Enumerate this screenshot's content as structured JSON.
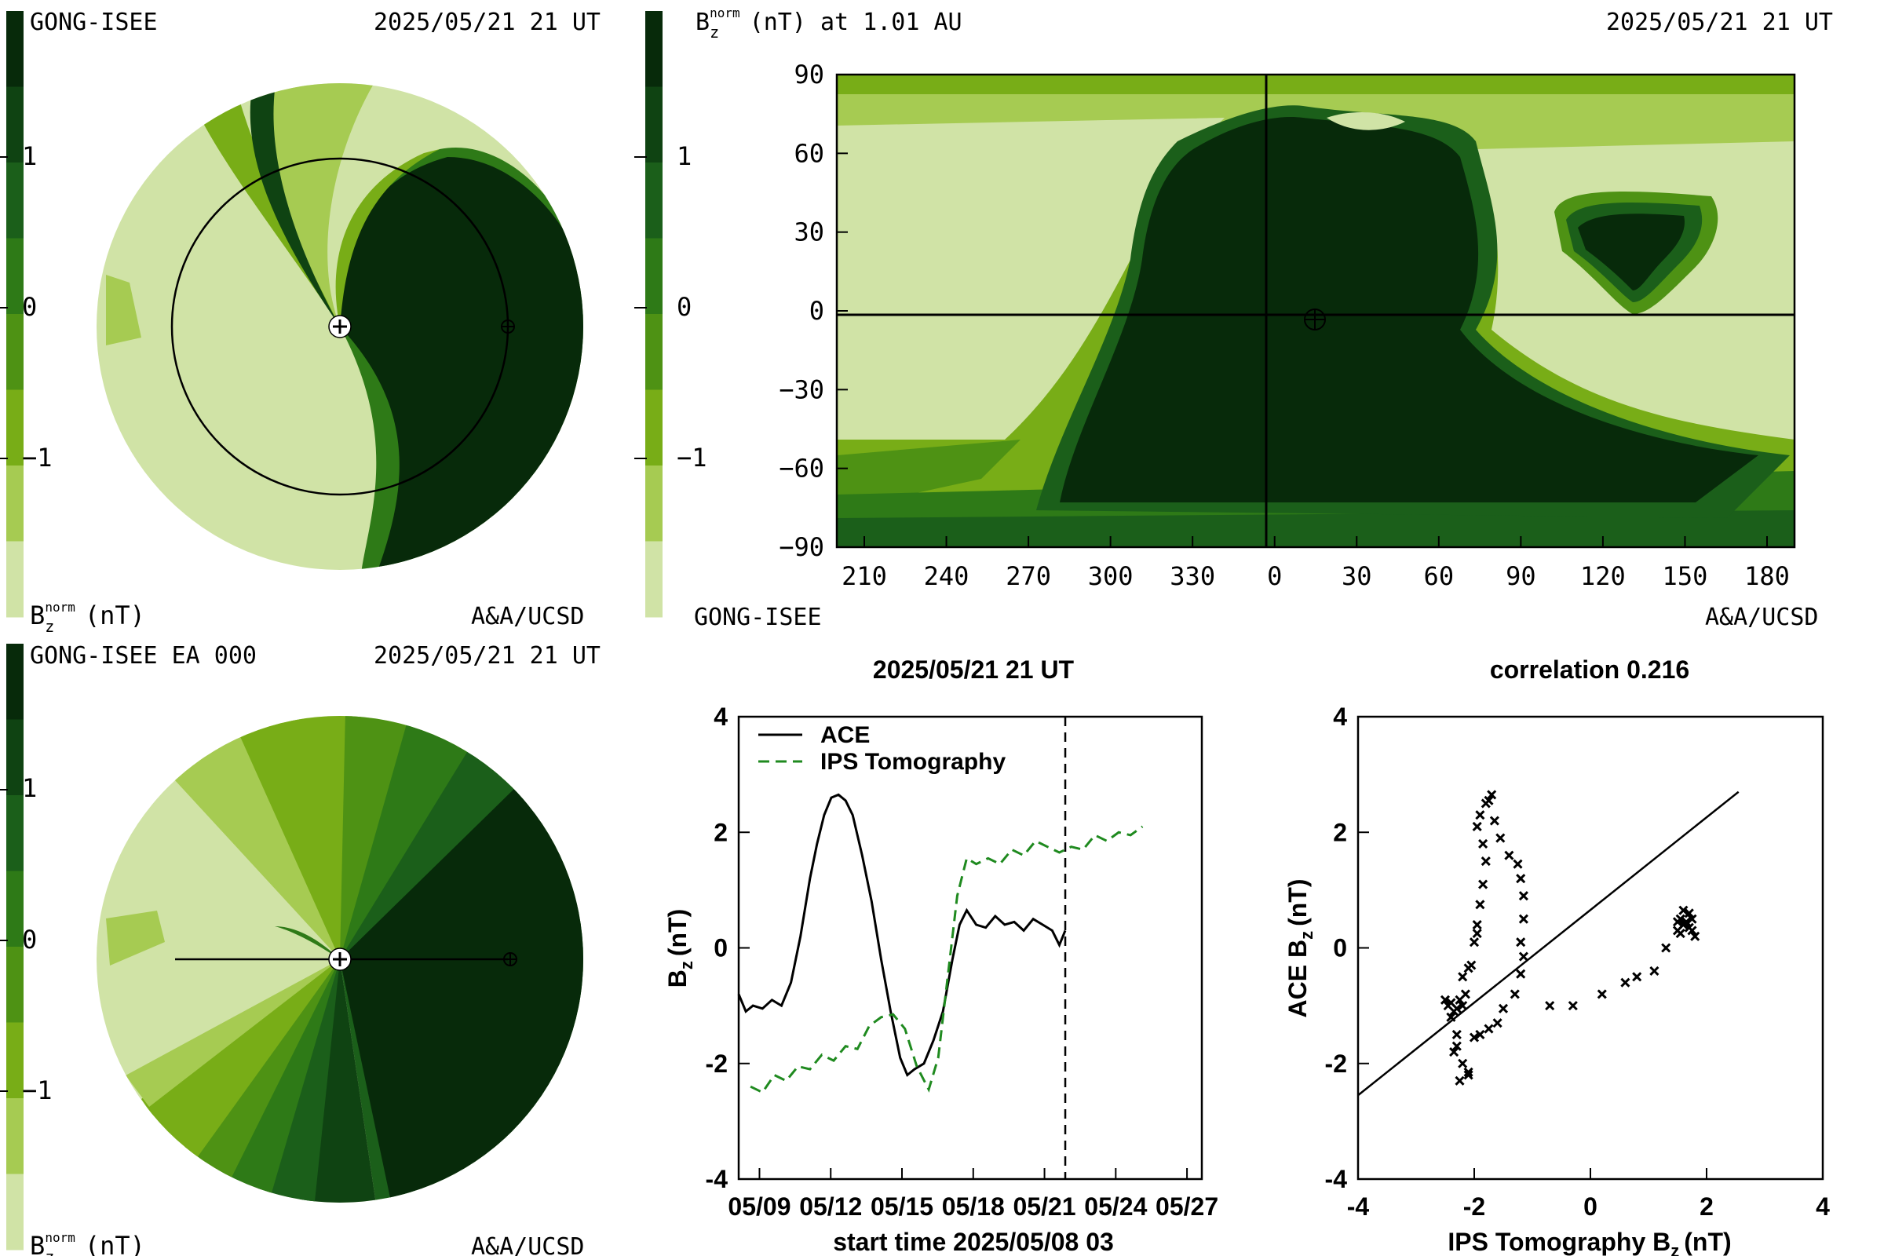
{
  "colorscale": [
    "#d0e3a6",
    "#a6cb52",
    "#78ad17",
    "#4e9214",
    "#2e7a17",
    "#1b5f1a",
    "#0f4312",
    "#072a0a"
  ],
  "panels": {
    "top_left": {
      "source": "GONG-ISEE",
      "timestamp": "2025/05/21 21 UT",
      "colorbar_ticks": [
        "1",
        "0",
        "−1"
      ],
      "colorbar_label_main": "B",
      "colorbar_label_sub": "z",
      "colorbar_label_sup": "norm",
      "colorbar_label_unit": "(nT)",
      "credit": "A&A/UCSD"
    },
    "top_right": {
      "title_main": "B",
      "title_sub": "z",
      "title_sup": "norm",
      "title_rest": "(nT) at 1.01 AU",
      "timestamp": "2025/05/21 21 UT",
      "colorbar_ticks": [
        "1",
        "0",
        "−1"
      ],
      "source": "GONG-ISEE",
      "credit": "A&A/UCSD"
    },
    "bottom_left": {
      "source": "GONG-ISEE EA 000",
      "timestamp": "2025/05/21 21 UT",
      "colorbar_ticks": [
        "1",
        "0",
        "−1"
      ],
      "colorbar_label_main": "B",
      "colorbar_label_sub": "z",
      "colorbar_label_sup": "norm",
      "colorbar_label_unit": "(nT)",
      "credit": "A&A/UCSD"
    }
  },
  "chart_data": [
    {
      "type": "heatmap",
      "title": "2025/05/21 21 UT",
      "x_ticks": [
        "210",
        "240",
        "270",
        "300",
        "330",
        "0",
        "30",
        "60",
        "90",
        "120",
        "150",
        "180"
      ],
      "y_ticks": [
        "90",
        "60",
        "30",
        "0",
        "−30",
        "−60",
        "−90"
      ],
      "ylim": [
        -90,
        90
      ],
      "earth_marker": {
        "lon": 18,
        "lat": -2
      }
    },
    {
      "type": "line",
      "title": "2025/05/21 21 UT",
      "xlabel": "start time 2025/05/08 03",
      "ylabel_main": "B",
      "ylabel_sub": "z",
      "ylabel_rest": "(nT)",
      "x_ticks": [
        "05/09",
        "05/12",
        "05/15",
        "05/18",
        "05/21",
        "05/24",
        "05/27"
      ],
      "x_tick_days": [
        0.875,
        3.875,
        6.875,
        9.875,
        12.875,
        15.875,
        18.875
      ],
      "y_ticks": [
        "4",
        "2",
        "0",
        "-2",
        "-4"
      ],
      "xlim": [
        0,
        19.5
      ],
      "ylim": [
        -4,
        4
      ],
      "now_day": 13.75,
      "series": [
        {
          "name": "ACE",
          "color": "#000000",
          "dash": "",
          "points": [
            [
              0,
              -0.8
            ],
            [
              0.3,
              -1.1
            ],
            [
              0.6,
              -1.0
            ],
            [
              1.0,
              -1.05
            ],
            [
              1.4,
              -0.9
            ],
            [
              1.8,
              -1.0
            ],
            [
              2.2,
              -0.6
            ],
            [
              2.6,
              0.2
            ],
            [
              3.0,
              1.2
            ],
            [
              3.3,
              1.8
            ],
            [
              3.6,
              2.3
            ],
            [
              3.9,
              2.6
            ],
            [
              4.2,
              2.65
            ],
            [
              4.5,
              2.55
            ],
            [
              4.8,
              2.3
            ],
            [
              5.2,
              1.6
            ],
            [
              5.6,
              0.8
            ],
            [
              6.0,
              -0.2
            ],
            [
              6.4,
              -1.1
            ],
            [
              6.8,
              -1.9
            ],
            [
              7.1,
              -2.2
            ],
            [
              7.4,
              -2.1
            ],
            [
              7.8,
              -2.0
            ],
            [
              8.2,
              -1.6
            ],
            [
              8.6,
              -1.1
            ],
            [
              9.0,
              -0.2
            ],
            [
              9.3,
              0.4
            ],
            [
              9.6,
              0.65
            ],
            [
              10.0,
              0.4
            ],
            [
              10.4,
              0.35
            ],
            [
              10.8,
              0.55
            ],
            [
              11.2,
              0.4
            ],
            [
              11.6,
              0.45
            ],
            [
              12.0,
              0.3
            ],
            [
              12.4,
              0.5
            ],
            [
              12.8,
              0.4
            ],
            [
              13.2,
              0.3
            ],
            [
              13.5,
              0.05
            ],
            [
              13.75,
              0.3
            ]
          ]
        },
        {
          "name": "IPS Tomography",
          "color": "#1f8a1f",
          "dash": "14,8",
          "points": [
            [
              0.5,
              -2.4
            ],
            [
              1.0,
              -2.5
            ],
            [
              1.5,
              -2.2
            ],
            [
              2.0,
              -2.3
            ],
            [
              2.5,
              -2.05
            ],
            [
              3.0,
              -2.1
            ],
            [
              3.5,
              -1.85
            ],
            [
              4.0,
              -1.95
            ],
            [
              4.5,
              -1.7
            ],
            [
              5.0,
              -1.75
            ],
            [
              5.5,
              -1.35
            ],
            [
              6.0,
              -1.2
            ],
            [
              6.5,
              -1.15
            ],
            [
              7.0,
              -1.4
            ],
            [
              7.5,
              -2.05
            ],
            [
              8.0,
              -2.45
            ],
            [
              8.4,
              -1.9
            ],
            [
              8.8,
              -0.5
            ],
            [
              9.2,
              0.9
            ],
            [
              9.6,
              1.55
            ],
            [
              10.0,
              1.45
            ],
            [
              10.5,
              1.55
            ],
            [
              11.0,
              1.45
            ],
            [
              11.5,
              1.7
            ],
            [
              12.0,
              1.6
            ],
            [
              12.5,
              1.85
            ],
            [
              13.0,
              1.75
            ],
            [
              13.5,
              1.65
            ],
            [
              14.0,
              1.75
            ],
            [
              14.5,
              1.7
            ],
            [
              15.0,
              1.95
            ],
            [
              15.5,
              1.85
            ],
            [
              16.0,
              2.0
            ],
            [
              16.5,
              1.95
            ],
            [
              17.0,
              2.1
            ]
          ]
        }
      ]
    },
    {
      "type": "scatter",
      "title": "correlation 0.216",
      "xlabel_main": "IPS Tomography B",
      "xlabel_sub": "z",
      "xlabel_rest": "(nT)",
      "ylabel_main": "ACE B",
      "ylabel_sub": "z",
      "ylabel_rest": "(nT)",
      "x_ticks": [
        "-4",
        "-2",
        "0",
        "2",
        "4"
      ],
      "y_ticks": [
        "4",
        "2",
        "0",
        "-2",
        "-4"
      ],
      "xlim": [
        -4,
        4
      ],
      "ylim": [
        -4,
        4
      ],
      "fit_line": [
        [
          -4,
          -2.55
        ],
        [
          2.55,
          2.7
        ]
      ],
      "points": [
        [
          -2.5,
          -0.9
        ],
        [
          -2.45,
          -1.0
        ],
        [
          -2.4,
          -0.95
        ],
        [
          -2.35,
          -1.1
        ],
        [
          -2.3,
          -1.05
        ],
        [
          -2.25,
          -0.9
        ],
        [
          -2.2,
          -1.0
        ],
        [
          -2.15,
          -0.8
        ],
        [
          -2.4,
          -1.2
        ],
        [
          -2.3,
          -1.5
        ],
        [
          -2.35,
          -1.8
        ],
        [
          -2.2,
          -2.0
        ],
        [
          -2.1,
          -2.2
        ],
        [
          -2.25,
          -2.3
        ],
        [
          -2.1,
          -2.15
        ],
        [
          -2.3,
          -1.7
        ],
        [
          -2.0,
          -1.55
        ],
        [
          -1.9,
          -1.5
        ],
        [
          -1.75,
          -1.4
        ],
        [
          -1.6,
          -1.3
        ],
        [
          -1.5,
          -1.05
        ],
        [
          -1.3,
          -0.8
        ],
        [
          -1.2,
          -0.45
        ],
        [
          -1.15,
          -0.15
        ],
        [
          -1.2,
          0.1
        ],
        [
          -1.15,
          0.5
        ],
        [
          -1.15,
          0.9
        ],
        [
          -1.2,
          1.2
        ],
        [
          -1.25,
          1.45
        ],
        [
          -1.4,
          1.6
        ],
        [
          -1.55,
          1.9
        ],
        [
          -1.65,
          2.2
        ],
        [
          -1.75,
          2.55
        ],
        [
          -1.7,
          2.65
        ],
        [
          -1.8,
          2.5
        ],
        [
          -1.9,
          2.3
        ],
        [
          -1.95,
          2.1
        ],
        [
          -1.85,
          1.8
        ],
        [
          -1.8,
          1.5
        ],
        [
          -1.85,
          1.1
        ],
        [
          -1.9,
          0.75
        ],
        [
          -1.95,
          0.4
        ],
        [
          -2.0,
          0.1
        ],
        [
          -2.05,
          -0.3
        ],
        [
          -2.2,
          -0.5
        ],
        [
          -2.1,
          -0.35
        ],
        [
          -1.95,
          0.25
        ],
        [
          -0.7,
          -1.0
        ],
        [
          -0.3,
          -1.0
        ],
        [
          0.2,
          -0.8
        ],
        [
          0.6,
          -0.6
        ],
        [
          0.8,
          -0.5
        ],
        [
          1.1,
          -0.4
        ],
        [
          1.3,
          0.0
        ],
        [
          1.5,
          0.3
        ],
        [
          1.55,
          0.5
        ],
        [
          1.6,
          0.65
        ],
        [
          1.65,
          0.45
        ],
        [
          1.7,
          0.35
        ],
        [
          1.75,
          0.5
        ],
        [
          1.8,
          0.2
        ],
        [
          1.55,
          0.25
        ],
        [
          1.6,
          0.4
        ],
        [
          1.7,
          0.6
        ],
        [
          1.5,
          0.45
        ],
        [
          1.75,
          0.3
        ]
      ]
    }
  ]
}
